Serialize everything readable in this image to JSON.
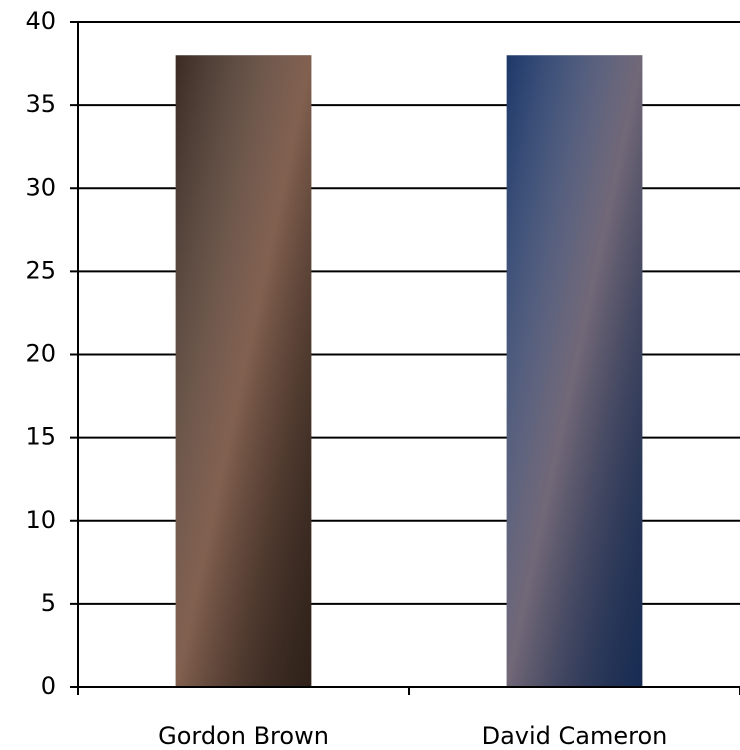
{
  "chart_data": {
    "type": "bar",
    "categories": [
      "Gordon Brown",
      "David Cameron"
    ],
    "values": [
      38,
      38
    ],
    "colors": [
      "#3b2a20",
      "#1d3768"
    ],
    "ylim": [
      0,
      40
    ],
    "yticks": [
      0,
      5,
      10,
      15,
      20,
      25,
      30,
      35,
      40
    ],
    "grid": true
  }
}
